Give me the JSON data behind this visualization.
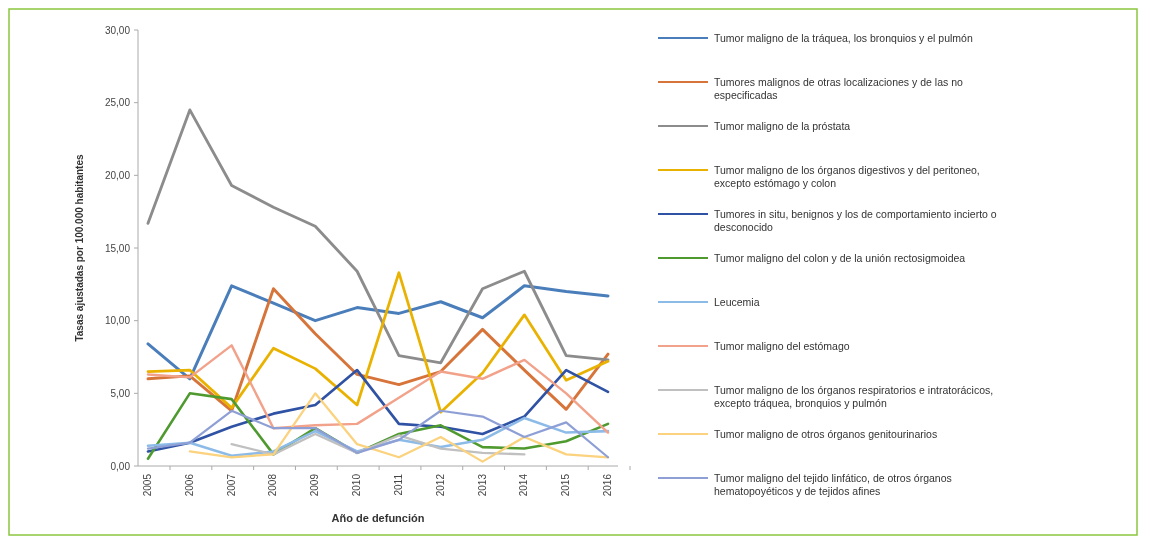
{
  "chart_data": {
    "type": "line",
    "xlabel": "Año de defunción",
    "ylabel": "Tasas ajustadas por 100.000 habitantes",
    "categories": [
      "2005",
      "2006",
      "2007",
      "2008",
      "2009",
      "2010",
      "2011",
      "2012",
      "2013",
      "2014",
      "2015",
      "2016"
    ],
    "ylim": [
      0,
      30
    ],
    "yticks": [
      {
        "value": 0,
        "label": "0,00"
      },
      {
        "value": 5,
        "label": "5,00"
      },
      {
        "value": 10,
        "label": "10,00"
      },
      {
        "value": 15,
        "label": "15,00"
      },
      {
        "value": 20,
        "label": "20,00"
      },
      {
        "value": 25,
        "label": "25,00"
      },
      {
        "value": 30,
        "label": "30,00"
      }
    ],
    "grid": false,
    "legend": "right",
    "marker": "none",
    "series": [
      {
        "name": "Tumor maligno de la tráquea, los bronquios y el pulmón",
        "color": "#4a7ebb",
        "values": [
          8.4,
          6.0,
          12.4,
          11.2,
          10.0,
          10.9,
          10.5,
          11.3,
          10.2,
          12.4,
          12.0,
          11.7
        ]
      },
      {
        "name": "Tumores malignos de otras localizaciones y de las no especificadas",
        "color": "#d7743a",
        "values": [
          6.0,
          6.2,
          3.8,
          12.2,
          9.1,
          6.3,
          5.6,
          6.5,
          9.4,
          6.6,
          3.9,
          7.7
        ]
      },
      {
        "name": "Tumor maligno de la próstata",
        "color": "#8c8c8c",
        "values": [
          16.7,
          24.5,
          19.3,
          17.8,
          16.5,
          13.4,
          7.6,
          7.1,
          12.2,
          13.4,
          7.6,
          7.3
        ]
      },
      {
        "name": "Tumor maligno de los órganos digestivos y del peritoneo, excepto estómago y colon",
        "color": "#eab200",
        "values": [
          6.5,
          6.6,
          4.0,
          8.1,
          6.7,
          4.2,
          13.3,
          3.7,
          6.4,
          10.4,
          5.9,
          7.2
        ]
      },
      {
        "name": "Tumores in situ, benignos y los de comportamiento incierto o desconocido",
        "color": "#2f52a4",
        "values": [
          1.0,
          1.6,
          2.7,
          3.6,
          4.2,
          6.6,
          2.9,
          2.7,
          2.2,
          3.4,
          6.6,
          5.1
        ]
      },
      {
        "name": "Tumor maligno del colon y de la unión rectosigmoidea",
        "color": "#4f9a2f",
        "values": [
          0.5,
          5.0,
          4.6,
          0.8,
          2.6,
          0.9,
          2.2,
          2.8,
          1.3,
          1.2,
          1.7,
          2.9
        ]
      },
      {
        "name": "Leucemia",
        "color": "#8dbbe8",
        "values": [
          1.4,
          1.6,
          0.7,
          1.0,
          2.4,
          1.0,
          1.8,
          1.3,
          1.8,
          3.3,
          2.3,
          2.4
        ]
      },
      {
        "name": "Tumor maligno del estómago",
        "color": "#f2a28a",
        "values": [
          6.3,
          6.1,
          8.3,
          2.6,
          2.8,
          2.9,
          4.7,
          6.5,
          6.0,
          7.3,
          5.0,
          2.3
        ]
      },
      {
        "name": "Tumor maligno de los órganos respiratorios e intratorácicos, excepto tráquea, bronquios y pulmón",
        "color": "#c0c0c0",
        "values": [
          null,
          null,
          1.5,
          0.8,
          2.2,
          0.9,
          2.1,
          1.2,
          0.9,
          0.8,
          null,
          null
        ]
      },
      {
        "name": "Tumor maligno de otros órganos genitourinarios",
        "color": "#fbd27e",
        "values": [
          null,
          1.0,
          0.6,
          0.8,
          5.0,
          1.5,
          0.6,
          2.0,
          0.3,
          2.0,
          0.8,
          0.6
        ]
      },
      {
        "name": "Tumor maligno del tejido linfático, de otros órganos hematopoyéticos y de tejidos afines",
        "color": "#8e9fd6",
        "values": [
          1.2,
          1.6,
          3.8,
          2.6,
          2.6,
          0.9,
          1.8,
          3.8,
          3.4,
          2.0,
          3.0,
          0.6
        ]
      }
    ]
  }
}
